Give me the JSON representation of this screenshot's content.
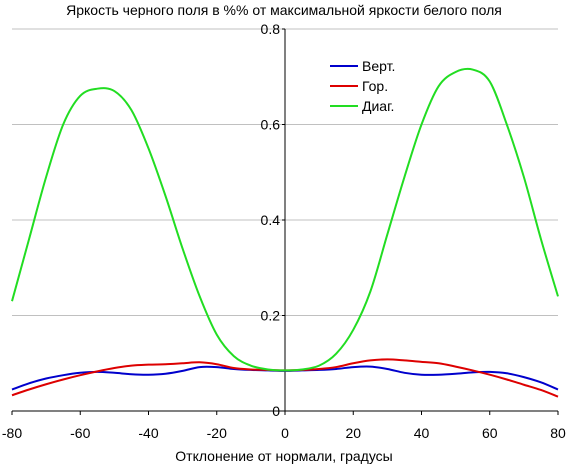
{
  "chart_data": {
    "type": "line",
    "title": "Яркость черного поля в %% от максимальной яркости белого поля",
    "xlabel": "Отклонение от нормали, градусы",
    "ylabel": "",
    "xlim": [
      -80,
      80
    ],
    "ylim": [
      0,
      0.8
    ],
    "x_ticks": [
      "-80",
      "-60",
      "-40",
      "-20",
      "0",
      "20",
      "40",
      "60",
      "80"
    ],
    "y_ticks": [
      "0",
      "0.2",
      "0.4",
      "0.6",
      "0.8"
    ],
    "grid": "horizontal",
    "legend_position": "top-right",
    "x": [
      -80,
      -75,
      -70,
      -65,
      -60,
      -55,
      -50,
      -45,
      -40,
      -35,
      -30,
      -25,
      -20,
      -15,
      -10,
      -5,
      0,
      5,
      10,
      15,
      20,
      25,
      30,
      35,
      40,
      45,
      50,
      55,
      60,
      65,
      70,
      75,
      80
    ],
    "series": [
      {
        "name": "Верт.",
        "color": "#0000cc",
        "values": [
          0.045,
          0.058,
          0.068,
          0.075,
          0.08,
          0.082,
          0.08,
          0.077,
          0.076,
          0.078,
          0.084,
          0.092,
          0.092,
          0.088,
          0.086,
          0.085,
          0.084,
          0.085,
          0.086,
          0.088,
          0.092,
          0.093,
          0.088,
          0.08,
          0.076,
          0.076,
          0.078,
          0.081,
          0.082,
          0.079,
          0.071,
          0.06,
          0.045
        ]
      },
      {
        "name": "Гор.",
        "color": "#dd0000",
        "values": [
          0.033,
          0.045,
          0.056,
          0.066,
          0.075,
          0.083,
          0.09,
          0.095,
          0.097,
          0.098,
          0.1,
          0.102,
          0.098,
          0.09,
          0.087,
          0.086,
          0.085,
          0.086,
          0.088,
          0.092,
          0.1,
          0.106,
          0.108,
          0.106,
          0.103,
          0.1,
          0.093,
          0.085,
          0.076,
          0.066,
          0.055,
          0.044,
          0.03
        ]
      },
      {
        "name": "Диаг.",
        "color": "#22dd22",
        "values": [
          0.23,
          0.36,
          0.49,
          0.6,
          0.66,
          0.675,
          0.67,
          0.63,
          0.55,
          0.45,
          0.34,
          0.24,
          0.16,
          0.115,
          0.095,
          0.087,
          0.085,
          0.087,
          0.095,
          0.12,
          0.17,
          0.25,
          0.37,
          0.49,
          0.6,
          0.68,
          0.71,
          0.715,
          0.69,
          0.6,
          0.49,
          0.36,
          0.24
        ]
      }
    ]
  }
}
